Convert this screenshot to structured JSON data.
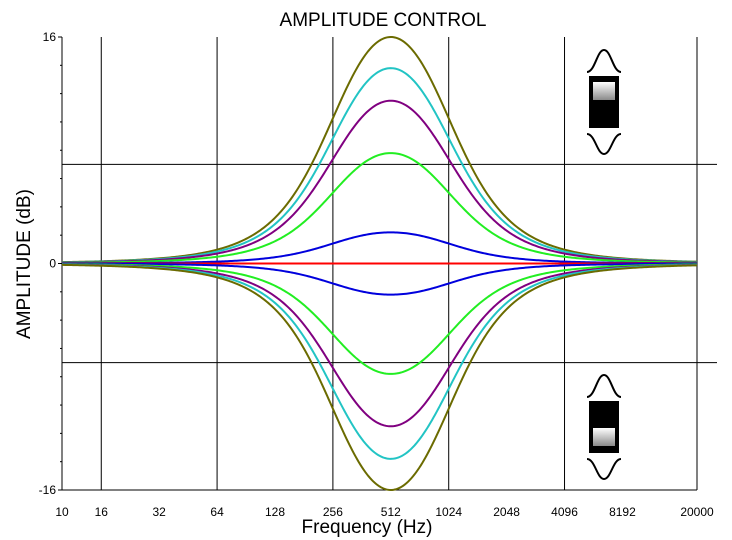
{
  "chart_data": {
    "type": "line",
    "title": "AMPLITUDE CONTROL",
    "xlabel": "Frequency (Hz)",
    "ylabel": "AMPLITUDE (dB)",
    "x_scale": "log",
    "xlim": [
      10,
      20000
    ],
    "ylim": [
      -16,
      16
    ],
    "x_tick_labels": [
      "10",
      "16",
      "32",
      "64",
      "128",
      "256",
      "512",
      "1024",
      "2048",
      "4096",
      "8192",
      "20000"
    ],
    "x_tick_values": [
      10,
      16,
      32,
      64,
      128,
      256,
      512,
      1024,
      2048,
      4096,
      8192,
      20000
    ],
    "y_tick_labels": [
      "16",
      "0",
      "-16"
    ],
    "y_tick_values": [
      16,
      0,
      -16
    ],
    "gridlines_x": [
      16,
      64,
      256,
      1024,
      4096,
      20000
    ],
    "gridlines_y": [
      7,
      -7
    ],
    "grid": true,
    "center_frequency": 512,
    "series": [
      {
        "color": "#6b6b00",
        "gain_db": 16
      },
      {
        "color": "#22c4c4",
        "gain_db": 13.8
      },
      {
        "color": "#800080",
        "gain_db": 11.5
      },
      {
        "color": "#22ee22",
        "gain_db": 7.8
      },
      {
        "color": "#0000dd",
        "gain_db": 2.2
      },
      {
        "color": "#ff0000",
        "gain_db": 0
      },
      {
        "color": "#0000dd",
        "gain_db": -2.2
      },
      {
        "color": "#22ee22",
        "gain_db": -7.8
      },
      {
        "color": "#800080",
        "gain_db": -11.5
      },
      {
        "color": "#22c4c4",
        "gain_db": -13.8
      },
      {
        "color": "#6b6b00",
        "gain_db": -16
      }
    ],
    "icons": [
      "boost-slider-icon",
      "cut-slider-icon"
    ]
  }
}
